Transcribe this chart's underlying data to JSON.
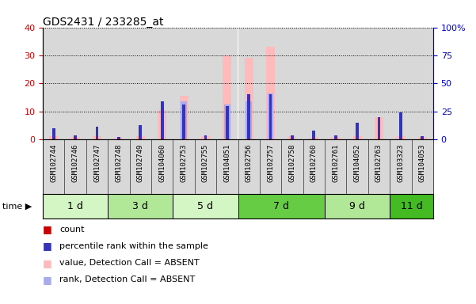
{
  "title": "GDS2431 / 233285_at",
  "samples": [
    "GSM102744",
    "GSM102746",
    "GSM102747",
    "GSM102748",
    "GSM102749",
    "GSM104060",
    "GSM102753",
    "GSM102755",
    "GSM104051",
    "GSM102756",
    "GSM102757",
    "GSM102758",
    "GSM102760",
    "GSM102761",
    "GSM104052",
    "GSM102763",
    "GSM103323",
    "GSM104053"
  ],
  "time_groups": [
    {
      "label": "1 d",
      "start": 0,
      "end": 3,
      "color": "#d4f5c4"
    },
    {
      "label": "3 d",
      "start": 3,
      "end": 6,
      "color": "#b0e898"
    },
    {
      "label": "5 d",
      "start": 6,
      "end": 9,
      "color": "#d4f5c4"
    },
    {
      "label": "7 d",
      "start": 9,
      "end": 13,
      "color": "#66cc44"
    },
    {
      "label": "9 d",
      "start": 13,
      "end": 16,
      "color": "#b0e898"
    },
    {
      "label": "11 d",
      "start": 16,
      "end": 18,
      "color": "#44bb22"
    }
  ],
  "absent_value_values": [
    1.0,
    0.8,
    1.0,
    0.5,
    1.0,
    10.5,
    15.5,
    1.0,
    30.0,
    29.0,
    33.0,
    1.0,
    0.8,
    0.8,
    1.0,
    8.0,
    1.0,
    0.8
  ],
  "absent_rank_values": [
    0.0,
    0.0,
    0.0,
    0.0,
    0.0,
    0.0,
    13.5,
    0.0,
    12.5,
    13.5,
    16.5,
    0.0,
    0.0,
    0.0,
    0.0,
    0.0,
    0.0,
    0.0
  ],
  "percentile_values": [
    4.0,
    1.5,
    4.5,
    0.7,
    5.0,
    13.5,
    12.5,
    1.5,
    12.0,
    16.0,
    16.0,
    1.5,
    3.0,
    1.5,
    6.0,
    8.0,
    9.5,
    1.0
  ],
  "count_values": [
    0.4,
    0.3,
    0.4,
    0.2,
    0.4,
    0.4,
    0.3,
    0.3,
    0.3,
    0.3,
    0.3,
    0.3,
    0.3,
    0.3,
    0.3,
    0.3,
    0.3,
    0.3
  ],
  "ylim_left": [
    0,
    40
  ],
  "ylim_right": [
    0,
    100
  ],
  "yticks_left": [
    0,
    10,
    20,
    30,
    40
  ],
  "yticks_right": [
    0,
    25,
    50,
    75,
    100
  ],
  "bar_width": 0.4,
  "small_bar_width": 0.25,
  "colors": {
    "count": "#cc0000",
    "percentile": "#3333bb",
    "absent_value": "#ffbbbb",
    "absent_rank": "#aaaaee",
    "axis_left": "#cc0000",
    "axis_right": "#0000cc",
    "grid": "#000000",
    "background": "#ffffff",
    "plot_bg": "#ffffff",
    "col_bg": "#d8d8d8"
  },
  "legend": [
    {
      "label": "count",
      "color": "#cc0000"
    },
    {
      "label": "percentile rank within the sample",
      "color": "#3333bb"
    },
    {
      "label": "value, Detection Call = ABSENT",
      "color": "#ffbbbb"
    },
    {
      "label": "rank, Detection Call = ABSENT",
      "color": "#aaaaee"
    }
  ]
}
